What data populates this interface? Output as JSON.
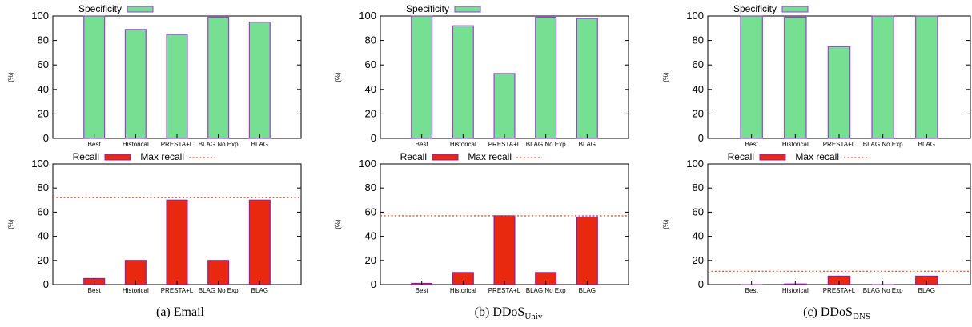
{
  "legend_labels": {
    "specificity": "Specificity",
    "recall": "Recall",
    "max_recall": "Max recall"
  },
  "colors": {
    "specificity_fill": "#77df91",
    "specificity_stroke": "#9b3fd6",
    "recall_fill": "#e8290f",
    "recall_stroke": "#8a1fa0",
    "max_recall_line": "#e8542a",
    "axis": "#000000"
  },
  "captions": [
    {
      "prefix": "(a)",
      "text": "Email",
      "sub": ""
    },
    {
      "prefix": "(b)",
      "text": "DDoS",
      "sub": "Univ"
    },
    {
      "prefix": "(c)",
      "text": "DDoS",
      "sub": "DNS"
    }
  ],
  "chart_data": [
    {
      "type": "bar",
      "panel": "a-top",
      "categories": [
        "Best",
        "Historical",
        "PRESTA+L",
        "BLAG No Exp",
        "BLAG"
      ],
      "series": [
        {
          "name": "Specificity",
          "values": [
            100,
            89,
            85,
            99,
            95
          ]
        }
      ],
      "ylabel": "(%)",
      "ylim": [
        0,
        100
      ],
      "yticks": [
        0,
        20,
        40,
        60,
        80,
        100
      ],
      "legend": "top-left"
    },
    {
      "type": "bar",
      "panel": "a-bottom",
      "categories": [
        "Best",
        "Historical",
        "PRESTA+L",
        "BLAG No Exp",
        "BLAG"
      ],
      "series": [
        {
          "name": "Recall",
          "values": [
            5,
            20,
            70,
            20,
            70
          ]
        }
      ],
      "reference_lines": [
        {
          "name": "Max recall",
          "value": 72
        }
      ],
      "ylabel": "(%)",
      "ylim": [
        0,
        100
      ],
      "yticks": [
        0,
        20,
        40,
        60,
        80,
        100
      ],
      "legend": "top-left"
    },
    {
      "type": "bar",
      "panel": "b-top",
      "categories": [
        "Best",
        "Historical",
        "PRESTA+L",
        "BLAG No Exp",
        "BLAG"
      ],
      "series": [
        {
          "name": "Specificity",
          "values": [
            100,
            92,
            53,
            99,
            98
          ]
        }
      ],
      "ylabel": "(%)",
      "ylim": [
        0,
        100
      ],
      "yticks": [
        0,
        20,
        40,
        60,
        80,
        100
      ],
      "legend": "top-left"
    },
    {
      "type": "bar",
      "panel": "b-bottom",
      "categories": [
        "Best",
        "Historical",
        "PRESTA+L",
        "BLAG No Exp",
        "BLAG"
      ],
      "series": [
        {
          "name": "Recall",
          "values": [
            1,
            10,
            57,
            10,
            56
          ]
        }
      ],
      "reference_lines": [
        {
          "name": "Max recall",
          "value": 57
        }
      ],
      "ylabel": "(%)",
      "ylim": [
        0,
        100
      ],
      "yticks": [
        0,
        20,
        40,
        60,
        80,
        100
      ],
      "legend": "top-left"
    },
    {
      "type": "bar",
      "panel": "c-top",
      "categories": [
        "Best",
        "Historical",
        "PRESTA+L",
        "BLAG No Exp",
        "BLAG"
      ],
      "series": [
        {
          "name": "Specificity",
          "values": [
            100,
            99,
            75,
            100,
            100
          ]
        }
      ],
      "ylabel": "(%)",
      "ylim": [
        0,
        100
      ],
      "yticks": [
        0,
        20,
        40,
        60,
        80,
        100
      ],
      "legend": "top-left"
    },
    {
      "type": "bar",
      "panel": "c-bottom",
      "categories": [
        "Best",
        "Historical",
        "PRESTA+L",
        "BLAG No Exp",
        "BLAG"
      ],
      "series": [
        {
          "name": "Recall",
          "values": [
            0,
            0.5,
            7,
            0,
            7
          ]
        }
      ],
      "reference_lines": [
        {
          "name": "Max recall",
          "value": 11
        }
      ],
      "ylabel": "(%)",
      "ylim": [
        0,
        100
      ],
      "yticks": [
        0,
        20,
        40,
        60,
        80,
        100
      ],
      "legend": "top-left"
    }
  ]
}
